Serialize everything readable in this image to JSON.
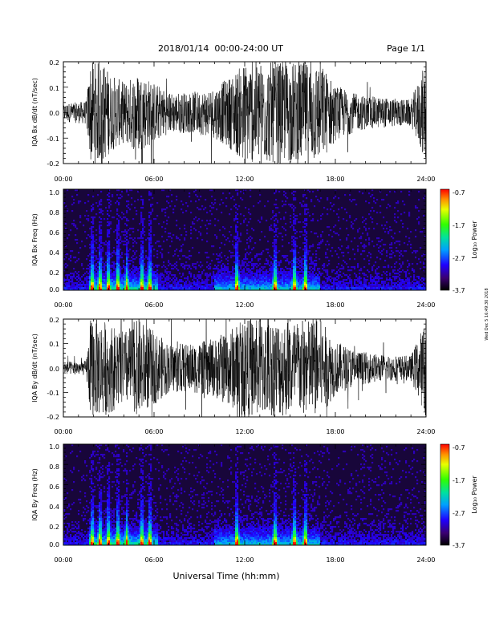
{
  "header": {
    "date_range": "2018/01/14  00:00-24:00 UT",
    "page": "Page 1/1"
  },
  "footer": {
    "xlabel": "Universal Time (hh:mm)",
    "stamp": "Wed Dec 5 16:49:30 2018"
  },
  "chart_data": [
    {
      "type": "line",
      "title": "",
      "ylabel": "IQA Bx dB/dt (nT/sec)",
      "xlabel": "",
      "x_ticks": [
        "00:00",
        "06:00",
        "12:00",
        "18:00",
        "24:00"
      ],
      "y_ticks": [
        "0.2",
        "0.1",
        "0.0",
        "-0.1",
        "-0.2"
      ],
      "xlim_hours": [
        0,
        24
      ],
      "ylim": [
        -0.2,
        0.2
      ],
      "envelope": {
        "x_hours": [
          0,
          1.5,
          1.8,
          2.6,
          3.2,
          4.0,
          5.0,
          6.0,
          7.0,
          8.5,
          10.0,
          11.0,
          12.0,
          13.0,
          14.0,
          15.0,
          16.0,
          17.0,
          18.0,
          19.5,
          21.0,
          23.0,
          24.0
        ],
        "amplitude": [
          0.035,
          0.045,
          0.2,
          0.2,
          0.15,
          0.12,
          0.16,
          0.12,
          0.08,
          0.08,
          0.1,
          0.14,
          0.2,
          0.2,
          0.2,
          0.2,
          0.2,
          0.2,
          0.11,
          0.07,
          0.06,
          0.05,
          0.2
        ]
      }
    },
    {
      "type": "heatmap",
      "title": "",
      "ylabel": "IQA Bx Freq (Hz)",
      "xlabel": "",
      "x_ticks": [
        "00:00",
        "06:00",
        "12:00",
        "18:00",
        "24:00"
      ],
      "y_ticks": [
        "1.0",
        "0.8",
        "0.6",
        "0.4",
        "0.2",
        "0.0"
      ],
      "xlim_hours": [
        0,
        24
      ],
      "ylim": [
        0,
        1.0
      ],
      "colorbar": {
        "label": "Log₁₀ Power",
        "ticks": [
          "-0.7",
          "-1.7",
          "-2.7",
          "-3.7"
        ],
        "range": [
          -3.7,
          -0.7
        ]
      },
      "bursts_hours": [
        1.9,
        2.4,
        3.0,
        3.6,
        4.2,
        5.2,
        5.7,
        11.5,
        14.0,
        15.3,
        16.0
      ]
    },
    {
      "type": "line",
      "title": "",
      "ylabel": "IQA By dB/dt (nT/sec)",
      "xlabel": "",
      "x_ticks": [
        "00:00",
        "06:00",
        "12:00",
        "18:00",
        "24:00"
      ],
      "y_ticks": [
        "0.2",
        "0.1",
        "0.0",
        "-0.1",
        "-0.2"
      ],
      "xlim_hours": [
        0,
        24
      ],
      "ylim": [
        -0.2,
        0.2
      ],
      "envelope": {
        "x_hours": [
          0,
          1.5,
          1.8,
          2.6,
          3.2,
          4.0,
          5.0,
          6.0,
          7.0,
          8.5,
          10.0,
          11.0,
          12.0,
          13.0,
          14.0,
          15.0,
          16.0,
          17.0,
          18.0,
          19.5,
          21.0,
          23.0,
          24.0
        ],
        "amplitude": [
          0.025,
          0.03,
          0.2,
          0.2,
          0.18,
          0.15,
          0.2,
          0.15,
          0.1,
          0.1,
          0.12,
          0.16,
          0.2,
          0.2,
          0.2,
          0.2,
          0.2,
          0.2,
          0.11,
          0.07,
          0.055,
          0.05,
          0.2
        ]
      }
    },
    {
      "type": "heatmap",
      "title": "",
      "ylabel": "IQA By Freq (Hz)",
      "xlabel": "",
      "x_ticks": [
        "00:00",
        "06:00",
        "12:00",
        "18:00",
        "24:00"
      ],
      "y_ticks": [
        "1.0",
        "0.8",
        "0.6",
        "0.4",
        "0.2",
        "0.0"
      ],
      "xlim_hours": [
        0,
        24
      ],
      "ylim": [
        0,
        1.0
      ],
      "colorbar": {
        "label": "Log₁₀ Power",
        "ticks": [
          "-0.7",
          "-1.7",
          "-2.7",
          "-3.7"
        ],
        "range": [
          -3.7,
          -0.7
        ]
      },
      "bursts_hours": [
        1.9,
        2.4,
        3.0,
        3.6,
        4.2,
        5.2,
        5.7,
        11.5,
        14.0,
        15.3,
        16.0
      ]
    }
  ]
}
